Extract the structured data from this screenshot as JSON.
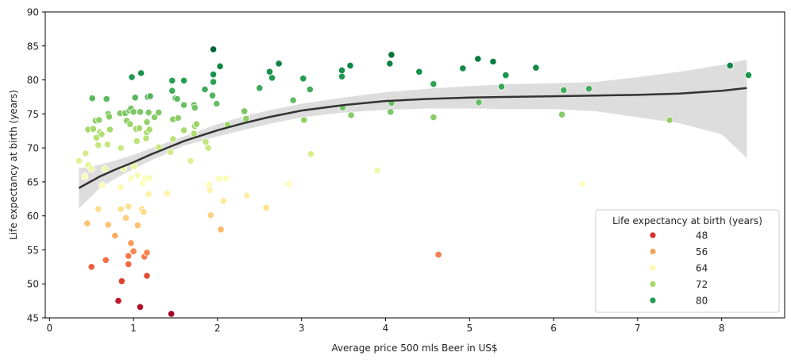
{
  "chart_data": {
    "type": "scatter",
    "xlabel": "Average price 500 mls Beer in US$",
    "ylabel": "Life expectancy at birth (years)",
    "xlim": [
      -0.05,
      8.75
    ],
    "ylim": [
      45,
      90
    ],
    "xticks": [
      0,
      1,
      2,
      3,
      4,
      5,
      6,
      7,
      8
    ],
    "yticks": [
      45,
      50,
      55,
      60,
      65,
      70,
      75,
      80,
      85,
      90
    ],
    "grid": false,
    "hue_colormap": "RdYlGn",
    "hue_range": [
      45.5,
      84.5
    ],
    "legend": {
      "title": "Life expectancy at birth (years)",
      "placement": "lower-right",
      "entries": [
        {
          "label": "48",
          "color": "#d73027"
        },
        {
          "label": "56",
          "color": "#f4a25a"
        },
        {
          "label": "64",
          "color": "#fbf8b3"
        },
        {
          "label": "72",
          "color": "#a6d96a"
        },
        {
          "label": "80",
          "color": "#219b51"
        }
      ]
    },
    "trend": {
      "color": "#333333",
      "band_color": "#dddddd",
      "x": [
        0.35,
        0.6,
        0.8,
        1.0,
        1.2,
        1.4,
        1.6,
        1.8,
        2.0,
        2.3,
        2.6,
        3.0,
        3.5,
        4.0,
        4.5,
        5.0,
        5.5,
        6.0,
        6.5,
        7.0,
        7.5,
        8.0,
        8.3
      ],
      "y": [
        64.1,
        65.8,
        66.9,
        67.9,
        69.0,
        70.0,
        71.0,
        71.8,
        72.6,
        73.6,
        74.5,
        75.5,
        76.3,
        76.9,
        77.2,
        77.4,
        77.5,
        77.6,
        77.7,
        77.8,
        78.0,
        78.4,
        78.8
      ],
      "band_upper": [
        67.0,
        67.5,
        68.2,
        69.0,
        69.9,
        70.8,
        71.7,
        72.6,
        73.5,
        74.6,
        75.5,
        76.5,
        77.4,
        78.2,
        78.7,
        79.1,
        79.4,
        79.5,
        79.7,
        80.4,
        81.2,
        82.2,
        83.0
      ],
      "band_lower": [
        61.1,
        64.1,
        65.6,
        66.9,
        68.1,
        69.2,
        70.3,
        71.0,
        71.7,
        72.6,
        73.5,
        74.5,
        75.2,
        75.6,
        75.8,
        75.8,
        75.7,
        75.7,
        75.4,
        74.5,
        73.6,
        72.0,
        68.5
      ]
    },
    "points": [
      {
        "x": 0.35,
        "y": 68.1
      },
      {
        "x": 0.42,
        "y": 65.8
      },
      {
        "x": 0.43,
        "y": 69.2
      },
      {
        "x": 0.45,
        "y": 58.9
      },
      {
        "x": 0.46,
        "y": 72.7
      },
      {
        "x": 0.46,
        "y": 67.5
      },
      {
        "x": 0.5,
        "y": 66.9
      },
      {
        "x": 0.5,
        "y": 52.5
      },
      {
        "x": 0.51,
        "y": 77.3
      },
      {
        "x": 0.52,
        "y": 72.8
      },
      {
        "x": 0.55,
        "y": 74.0
      },
      {
        "x": 0.56,
        "y": 71.5
      },
      {
        "x": 0.58,
        "y": 70.4
      },
      {
        "x": 0.58,
        "y": 61.0
      },
      {
        "x": 0.59,
        "y": 74.1
      },
      {
        "x": 0.6,
        "y": 72.3
      },
      {
        "x": 0.62,
        "y": 72.0
      },
      {
        "x": 0.63,
        "y": 64.5
      },
      {
        "x": 0.66,
        "y": 66.9
      },
      {
        "x": 0.67,
        "y": 53.5
      },
      {
        "x": 0.68,
        "y": 77.2
      },
      {
        "x": 0.69,
        "y": 70.5
      },
      {
        "x": 0.7,
        "y": 58.7
      },
      {
        "x": 0.7,
        "y": 75.0
      },
      {
        "x": 0.71,
        "y": 74.6
      },
      {
        "x": 0.72,
        "y": 72.7
      },
      {
        "x": 0.78,
        "y": 57.1
      },
      {
        "x": 0.82,
        "y": 47.5
      },
      {
        "x": 0.84,
        "y": 75.1
      },
      {
        "x": 0.85,
        "y": 61.0
      },
      {
        "x": 0.85,
        "y": 64.2
      },
      {
        "x": 0.85,
        "y": 70.0
      },
      {
        "x": 0.86,
        "y": 50.4
      },
      {
        "x": 0.88,
        "y": 67.0
      },
      {
        "x": 0.9,
        "y": 75.1
      },
      {
        "x": 0.91,
        "y": 59.7
      },
      {
        "x": 0.92,
        "y": 74.0
      },
      {
        "x": 0.94,
        "y": 61.4
      },
      {
        "x": 0.94,
        "y": 54.1
      },
      {
        "x": 0.94,
        "y": 52.9
      },
      {
        "x": 0.95,
        "y": 75.5
      },
      {
        "x": 0.96,
        "y": 73.5
      },
      {
        "x": 0.97,
        "y": 75.8
      },
      {
        "x": 0.97,
        "y": 56.0
      },
      {
        "x": 0.97,
        "y": 65.5
      },
      {
        "x": 0.98,
        "y": 80.4
      },
      {
        "x": 1.0,
        "y": 75.3
      },
      {
        "x": 1.0,
        "y": 54.8
      },
      {
        "x": 1.01,
        "y": 67.3
      },
      {
        "x": 1.02,
        "y": 77.4
      },
      {
        "x": 1.03,
        "y": 72.8
      },
      {
        "x": 1.04,
        "y": 71.0
      },
      {
        "x": 1.05,
        "y": 58.6
      },
      {
        "x": 1.05,
        "y": 66.0
      },
      {
        "x": 1.07,
        "y": 72.9
      },
      {
        "x": 1.08,
        "y": 75.3
      },
      {
        "x": 1.08,
        "y": 46.6
      },
      {
        "x": 1.09,
        "y": 81.0
      },
      {
        "x": 1.1,
        "y": 61.0
      },
      {
        "x": 1.11,
        "y": 64.8
      },
      {
        "x": 1.12,
        "y": 60.6
      },
      {
        "x": 1.13,
        "y": 54.0
      },
      {
        "x": 1.14,
        "y": 65.5
      },
      {
        "x": 1.15,
        "y": 71.4
      },
      {
        "x": 1.16,
        "y": 54.6
      },
      {
        "x": 1.16,
        "y": 51.2
      },
      {
        "x": 1.16,
        "y": 72.3
      },
      {
        "x": 1.16,
        "y": 73.8
      },
      {
        "x": 1.17,
        "y": 77.5
      },
      {
        "x": 1.18,
        "y": 63.2
      },
      {
        "x": 1.18,
        "y": 75.2
      },
      {
        "x": 1.19,
        "y": 65.6
      },
      {
        "x": 1.19,
        "y": 72.7
      },
      {
        "x": 1.2,
        "y": 77.6
      },
      {
        "x": 1.25,
        "y": 74.5
      },
      {
        "x": 1.3,
        "y": 75.2
      },
      {
        "x": 1.3,
        "y": 70.1
      },
      {
        "x": 1.4,
        "y": 63.3
      },
      {
        "x": 1.44,
        "y": 69.4
      },
      {
        "x": 1.45,
        "y": 45.6
      },
      {
        "x": 1.46,
        "y": 78.4
      },
      {
        "x": 1.46,
        "y": 79.9
      },
      {
        "x": 1.47,
        "y": 71.3
      },
      {
        "x": 1.47,
        "y": 74.2
      },
      {
        "x": 1.5,
        "y": 77.3
      },
      {
        "x": 1.52,
        "y": 77.2
      },
      {
        "x": 1.53,
        "y": 74.4
      },
      {
        "x": 1.6,
        "y": 72.6
      },
      {
        "x": 1.6,
        "y": 76.3
      },
      {
        "x": 1.6,
        "y": 79.9
      },
      {
        "x": 1.68,
        "y": 68.1
      },
      {
        "x": 1.72,
        "y": 76.3
      },
      {
        "x": 1.72,
        "y": 72.1
      },
      {
        "x": 1.73,
        "y": 73.2
      },
      {
        "x": 1.73,
        "y": 75.9
      },
      {
        "x": 1.75,
        "y": 73.5
      },
      {
        "x": 1.85,
        "y": 78.6
      },
      {
        "x": 1.86,
        "y": 70.9
      },
      {
        "x": 1.89,
        "y": 70.0
      },
      {
        "x": 1.9,
        "y": 64.6
      },
      {
        "x": 1.91,
        "y": 63.8
      },
      {
        "x": 1.92,
        "y": 60.1
      },
      {
        "x": 1.94,
        "y": 77.7
      },
      {
        "x": 1.95,
        "y": 79.7
      },
      {
        "x": 1.95,
        "y": 84.5
      },
      {
        "x": 1.95,
        "y": 80.8
      },
      {
        "x": 1.99,
        "y": 76.5
      },
      {
        "x": 2.02,
        "y": 65.5
      },
      {
        "x": 2.03,
        "y": 82.0
      },
      {
        "x": 2.04,
        "y": 58.0
      },
      {
        "x": 2.07,
        "y": 62.2
      },
      {
        "x": 2.1,
        "y": 65.5
      },
      {
        "x": 2.12,
        "y": 73.4
      },
      {
        "x": 2.32,
        "y": 75.4
      },
      {
        "x": 2.33,
        "y": 74.1
      },
      {
        "x": 2.34,
        "y": 74.3
      },
      {
        "x": 2.35,
        "y": 63.0
      },
      {
        "x": 2.5,
        "y": 78.8
      },
      {
        "x": 2.58,
        "y": 61.2
      },
      {
        "x": 2.62,
        "y": 81.2
      },
      {
        "x": 2.65,
        "y": 80.3
      },
      {
        "x": 2.73,
        "y": 82.4
      },
      {
        "x": 2.85,
        "y": 64.7
      },
      {
        "x": 2.9,
        "y": 77.0
      },
      {
        "x": 3.02,
        "y": 80.2
      },
      {
        "x": 3.03,
        "y": 74.1
      },
      {
        "x": 3.1,
        "y": 78.6
      },
      {
        "x": 3.11,
        "y": 69.1
      },
      {
        "x": 3.48,
        "y": 81.4
      },
      {
        "x": 3.48,
        "y": 80.5
      },
      {
        "x": 3.49,
        "y": 75.9
      },
      {
        "x": 3.58,
        "y": 82.1
      },
      {
        "x": 3.59,
        "y": 74.8
      },
      {
        "x": 3.9,
        "y": 66.7
      },
      {
        "x": 4.05,
        "y": 82.4
      },
      {
        "x": 4.06,
        "y": 75.3
      },
      {
        "x": 4.07,
        "y": 83.7
      },
      {
        "x": 4.07,
        "y": 76.6
      },
      {
        "x": 4.4,
        "y": 81.2
      },
      {
        "x": 4.57,
        "y": 79.4
      },
      {
        "x": 4.57,
        "y": 74.5
      },
      {
        "x": 4.63,
        "y": 54.3
      },
      {
        "x": 4.92,
        "y": 81.7
      },
      {
        "x": 5.1,
        "y": 83.1
      },
      {
        "x": 5.11,
        "y": 76.7
      },
      {
        "x": 5.28,
        "y": 82.7
      },
      {
        "x": 5.38,
        "y": 79.0
      },
      {
        "x": 5.43,
        "y": 80.7
      },
      {
        "x": 5.79,
        "y": 81.8
      },
      {
        "x": 6.1,
        "y": 74.9
      },
      {
        "x": 6.12,
        "y": 78.5
      },
      {
        "x": 6.34,
        "y": 64.7
      },
      {
        "x": 6.42,
        "y": 78.7
      },
      {
        "x": 7.38,
        "y": 74.1
      },
      {
        "x": 8.1,
        "y": 82.1
      },
      {
        "x": 8.32,
        "y": 80.7
      }
    ]
  }
}
